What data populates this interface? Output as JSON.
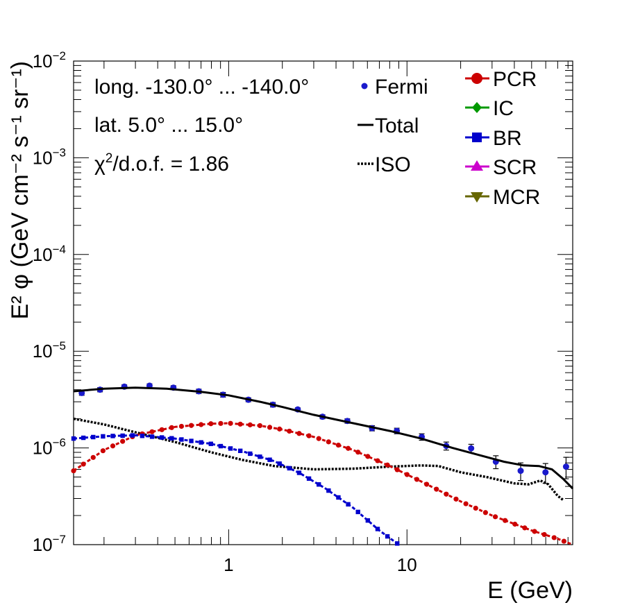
{
  "chart_data": {
    "type": "line",
    "xlabel": "E (GeV)",
    "ylabel": "E² φ (GeV cm⁻² s⁻¹ sr⁻¹)",
    "x_scale": "log",
    "y_scale": "log",
    "xlim": [
      0.135,
      85
    ],
    "ylim": [
      1e-07,
      0.01
    ],
    "x_tick_labels": [
      {
        "value": 1,
        "label": "1"
      },
      {
        "value": 10,
        "label": "10"
      }
    ],
    "y_tick_labels": [
      {
        "value": 1e-07,
        "label": "10",
        "exp": "−7"
      },
      {
        "value": 1e-06,
        "label": "10",
        "exp": "−6"
      },
      {
        "value": 1e-05,
        "label": "10",
        "exp": "−5"
      },
      {
        "value": 0.0001,
        "label": "10",
        "exp": "−4"
      },
      {
        "value": 0.001,
        "label": "10",
        "exp": "−3"
      },
      {
        "value": 0.01,
        "label": "10",
        "exp": "−2"
      }
    ],
    "annotations": {
      "longitude": "long. -130.0° ... -140.0°",
      "latitude": "lat. 5.0° ... 15.0°",
      "chi2_prefix": "χ",
      "chi2_sup": "2",
      "chi2_suffix": "/d.o.f. = 1.86"
    },
    "legend": {
      "placement": "top-right",
      "entries": [
        {
          "name": "Fermi",
          "style": "marker"
        },
        {
          "name": "Total",
          "style": "solid"
        },
        {
          "name": "ISO",
          "style": "dotted"
        },
        {
          "name": "PCR",
          "style": "circle",
          "color": "#cc0000"
        },
        {
          "name": "IC",
          "style": "diamond",
          "color": "#009900"
        },
        {
          "name": "BR",
          "style": "square",
          "color": "#0000cc"
        },
        {
          "name": "SCR",
          "style": "triangle-up",
          "color": "#cc00cc"
        },
        {
          "name": "MCR",
          "style": "triangle-down",
          "color": "#666600"
        }
      ]
    },
    "series": [
      {
        "name": "Fermi",
        "kind": "data",
        "color": "#1a1acc",
        "points": [
          {
            "x": 0.15,
            "y": 3.7e-06,
            "err": 2e-07
          },
          {
            "x": 0.19,
            "y": 4e-06,
            "err": 2e-07
          },
          {
            "x": 0.26,
            "y": 4.3e-06,
            "err": 2e-07
          },
          {
            "x": 0.36,
            "y": 4.4e-06,
            "err": 2e-07
          },
          {
            "x": 0.49,
            "y": 4.2e-06,
            "err": 2e-07
          },
          {
            "x": 0.68,
            "y": 3.85e-06,
            "err": 2e-07
          },
          {
            "x": 0.93,
            "y": 3.55e-06,
            "err": 2e-07
          },
          {
            "x": 1.29,
            "y": 3.15e-06,
            "err": 1.5e-07
          },
          {
            "x": 1.77,
            "y": 2.8e-06,
            "err": 1.5e-07
          },
          {
            "x": 2.44,
            "y": 2.5e-06,
            "err": 1e-07
          },
          {
            "x": 3.36,
            "y": 2.1e-06,
            "err": 1e-07
          },
          {
            "x": 4.63,
            "y": 1.9e-06,
            "err": 1e-07
          },
          {
            "x": 6.37,
            "y": 1.6e-06,
            "err": 1e-07
          },
          {
            "x": 8.77,
            "y": 1.5e-06,
            "err": 1e-07
          },
          {
            "x": 12.1,
            "y": 1.3e-06,
            "err": 1e-07
          },
          {
            "x": 16.6,
            "y": 1.05e-06,
            "err": 1e-07
          },
          {
            "x": 22.9,
            "y": 9.9e-07,
            "err": 1e-07
          },
          {
            "x": 31.5,
            "y": 7.2e-07,
            "err": 1.1e-07
          },
          {
            "x": 43.4,
            "y": 5.8e-07,
            "err": 1.2e-07
          },
          {
            "x": 59.8,
            "y": 5.6e-07,
            "err": 1.3e-07
          },
          {
            "x": 78.0,
            "y": 6.4e-07,
            "err": 1.6e-07
          }
        ]
      },
      {
        "name": "Total",
        "kind": "solid",
        "color": "#000000",
        "points": [
          [
            0.135,
            3.85e-06
          ],
          [
            0.2,
            4.1e-06
          ],
          [
            0.3,
            4.2e-06
          ],
          [
            0.45,
            4.1e-06
          ],
          [
            0.7,
            3.8e-06
          ],
          [
            1.0,
            3.5e-06
          ],
          [
            1.5,
            3e-06
          ],
          [
            2.0,
            2.65e-06
          ],
          [
            3.0,
            2.2e-06
          ],
          [
            5.0,
            1.8e-06
          ],
          [
            8.0,
            1.5e-06
          ],
          [
            12.0,
            1.25e-06
          ],
          [
            18.0,
            1e-06
          ],
          [
            25.0,
            8.5e-07
          ],
          [
            35.0,
            7.2e-07
          ],
          [
            45.0,
            6.6e-07
          ],
          [
            55.0,
            6.5e-07
          ],
          [
            65.0,
            6e-07
          ],
          [
            75.0,
            4.8e-07
          ],
          [
            85.0,
            3.8e-07
          ]
        ]
      },
      {
        "name": "ISO",
        "kind": "dotted",
        "color": "#000000",
        "points": [
          [
            0.135,
            2e-06
          ],
          [
            0.2,
            1.75e-06
          ],
          [
            0.3,
            1.45e-06
          ],
          [
            0.5,
            1.15e-06
          ],
          [
            0.8,
            9e-07
          ],
          [
            1.2,
            7.5e-07
          ],
          [
            1.8,
            6.5e-07
          ],
          [
            3.0,
            6e-07
          ],
          [
            5.0,
            6.1e-07
          ],
          [
            8.0,
            6.4e-07
          ],
          [
            12.0,
            6.6e-07
          ],
          [
            15.0,
            6.5e-07
          ],
          [
            20.0,
            5.6e-07
          ],
          [
            28.0,
            5e-07
          ],
          [
            40.0,
            4.3e-07
          ],
          [
            48.0,
            4.2e-07
          ],
          [
            56.0,
            4.6e-07
          ],
          [
            62.0,
            4.2e-07
          ],
          [
            70.0,
            3.2e-07
          ],
          [
            75.0,
            2.9e-07
          ]
        ]
      },
      {
        "name": "PCR",
        "kind": "marker-line",
        "marker": "circle",
        "color": "#cc0000",
        "points": [
          [
            0.135,
            5.8e-07
          ],
          [
            0.2,
            9.5e-07
          ],
          [
            0.3,
            1.35e-06
          ],
          [
            0.5,
            1.65e-06
          ],
          [
            0.8,
            1.78e-06
          ],
          [
            1.0,
            1.8e-06
          ],
          [
            1.5,
            1.7e-06
          ],
          [
            2.0,
            1.55e-06
          ],
          [
            3.0,
            1.3e-06
          ],
          [
            5.0,
            9.5e-07
          ],
          [
            8.0,
            6.5e-07
          ],
          [
            12.0,
            4.5e-07
          ],
          [
            20.0,
            2.8e-07
          ],
          [
            30.0,
            2e-07
          ],
          [
            50.0,
            1.4e-07
          ],
          [
            70.0,
            1.15e-07
          ],
          [
            85.0,
            1e-07
          ]
        ]
      },
      {
        "name": "BR",
        "kind": "marker-line",
        "marker": "square",
        "color": "#0000cc",
        "points": [
          [
            0.135,
            1.25e-06
          ],
          [
            0.2,
            1.32e-06
          ],
          [
            0.3,
            1.35e-06
          ],
          [
            0.5,
            1.25e-06
          ],
          [
            0.8,
            1.1e-06
          ],
          [
            1.2,
            9.2e-07
          ],
          [
            1.8,
            7.3e-07
          ],
          [
            2.5,
            5.5e-07
          ],
          [
            3.5,
            3.8e-07
          ],
          [
            5.0,
            2.4e-07
          ],
          [
            7.0,
            1.4e-07
          ],
          [
            9.0,
            1e-07
          ]
        ]
      }
    ]
  }
}
